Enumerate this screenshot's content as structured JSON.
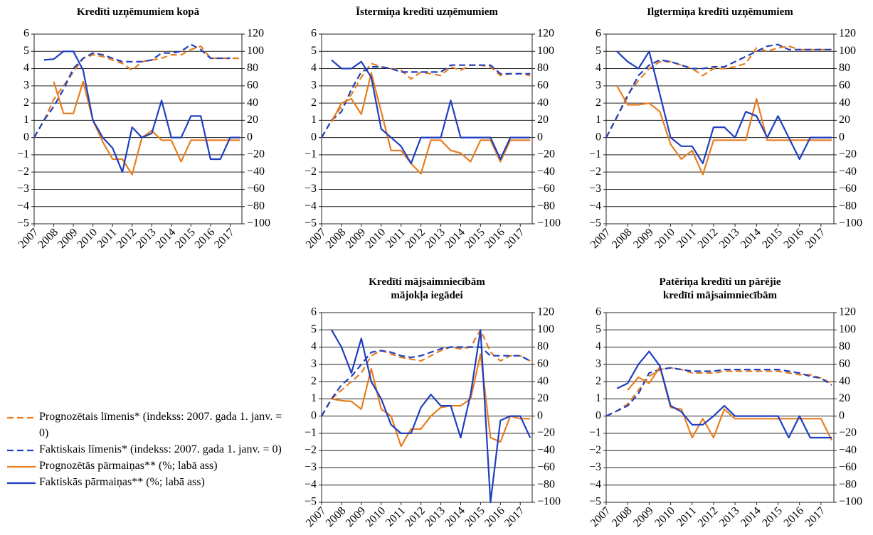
{
  "chart_data": [
    {
      "type": "line",
      "title": "Kredīti uzņēmumiem kopā",
      "x": [
        2007,
        2007.5,
        2008,
        2008.5,
        2009,
        2009.5,
        2010,
        2010.5,
        2011,
        2011.5,
        2012,
        2012.5,
        2013,
        2013.5,
        2014,
        2014.5,
        2015,
        2015.5,
        2016,
        2016.5,
        2017,
        2017.5
      ],
      "xlim": [
        2007,
        2017.6
      ],
      "xticks": [
        2007,
        2008,
        2009,
        2010,
        2011,
        2012,
        2013,
        2014,
        2015,
        2016,
        2017
      ],
      "ylim": [
        -5,
        6
      ],
      "yticks": [
        {
          "value": -5,
          "label": "−5"
        },
        {
          "value": -4,
          "label": "−4"
        },
        {
          "value": -3,
          "label": "−3"
        },
        {
          "value": -2,
          "label": "−2"
        },
        {
          "value": -1,
          "label": "−1"
        },
        0,
        1,
        2,
        3,
        4,
        5,
        6
      ],
      "y2lim": [
        -100,
        120
      ],
      "y2ticks": [
        {
          "value": -100,
          "label": "−100"
        },
        {
          "value": -80,
          "label": "−80"
        },
        {
          "value": -60,
          "label": "−60"
        },
        {
          "value": -40,
          "label": "−40"
        },
        {
          "value": -20,
          "label": "−20"
        },
        0,
        20,
        40,
        60,
        80,
        100,
        120
      ],
      "grid": true,
      "series": [
        {
          "name": "Prognozētais līmenis* (indekss: 2007. gada 1. janv. = 0)",
          "color": "#e87d1e",
          "linestyle": "dashed",
          "values": [
            0,
            1,
            2.2,
            3,
            3.8,
            4.6,
            4.8,
            4.7,
            4.5,
            4.3,
            3.9,
            4.4,
            4.5,
            4.6,
            4.8,
            4.8,
            5.1,
            5.3,
            4.6,
            4.6,
            4.6,
            4.6
          ]
        },
        {
          "name": "Faktiskais līmenis* (indekss: 2007. gada 1. janv. = 0)",
          "color": "#1f3fbf",
          "linestyle": "dashed",
          "values": [
            0,
            1,
            1.8,
            2.8,
            4,
            4.6,
            4.9,
            4.8,
            4.6,
            4.4,
            4.4,
            4.4,
            4.5,
            4.9,
            4.9,
            5,
            5.4,
            5.1,
            4.6,
            4.6,
            4.6,
            null
          ]
        },
        {
          "name": "Prognozētās pārmaiņas** (%; labā ass)",
          "color": "#e87d1e",
          "linestyle": "solid",
          "axis": "y2",
          "values": [
            null,
            null,
            65,
            28,
            28,
            65,
            20,
            -5,
            -25,
            -25,
            -43,
            0,
            8,
            -3,
            -3,
            -28,
            -3,
            -3,
            -3,
            -3,
            -3,
            -3
          ]
        },
        {
          "name": "Faktiskās pārmaiņas** (%; labā ass)",
          "color": "#1f3fbf",
          "linestyle": "solid",
          "axis": "y2",
          "values": [
            null,
            90,
            91,
            100,
            100,
            78,
            20,
            0,
            -12,
            -40,
            12,
            0,
            5,
            43,
            0,
            0,
            25,
            25,
            -25,
            -25,
            0,
            0
          ]
        }
      ]
    },
    {
      "type": "line",
      "title": "Īstermiņa kredīti uzņēmumiem",
      "x": [
        2007,
        2007.5,
        2008,
        2008.5,
        2009,
        2009.5,
        2010,
        2010.5,
        2011,
        2011.5,
        2012,
        2012.5,
        2013,
        2013.5,
        2014,
        2014.5,
        2015,
        2015.5,
        2016,
        2016.5,
        2017,
        2017.5
      ],
      "xlim": [
        2007,
        2017.6
      ],
      "xticks": [
        2007,
        2008,
        2009,
        2010,
        2011,
        2012,
        2013,
        2014,
        2015,
        2016,
        2017
      ],
      "ylim": [
        -5,
        6
      ],
      "yticks": [
        {
          "value": -5,
          "label": "−5"
        },
        {
          "value": -4,
          "label": "−4"
        },
        {
          "value": -3,
          "label": "−3"
        },
        {
          "value": -2,
          "label": "−2"
        },
        {
          "value": -1,
          "label": "−1"
        },
        0,
        1,
        2,
        3,
        4,
        5,
        6
      ],
      "y2lim": [
        -100,
        120
      ],
      "y2ticks": [
        {
          "value": -100,
          "label": "−100"
        },
        {
          "value": -80,
          "label": "−80"
        },
        {
          "value": -60,
          "label": "−60"
        },
        {
          "value": -40,
          "label": "−40"
        },
        {
          "value": -20,
          "label": "−20"
        },
        0,
        20,
        40,
        60,
        80,
        100,
        120
      ],
      "grid": true,
      "series": [
        {
          "color": "#e87d1e",
          "linestyle": "dashed",
          "values": [
            0,
            1,
            1.8,
            2.5,
            3.5,
            4.3,
            4.1,
            4.0,
            3.9,
            3.4,
            3.8,
            3.7,
            3.6,
            4.1,
            3.9,
            4.2,
            4.2,
            4.1,
            3.6,
            3.7,
            3.7,
            3.6
          ]
        },
        {
          "color": "#1f3fbf",
          "linestyle": "dashed",
          "values": [
            0,
            1,
            1.5,
            2.8,
            3.8,
            4.1,
            4.1,
            4.0,
            3.8,
            3.8,
            3.8,
            3.8,
            3.8,
            4.2,
            4.2,
            4.2,
            4.2,
            4.2,
            3.7,
            3.7,
            3.7,
            3.7
          ]
        },
        {
          "color": "#e87d1e",
          "linestyle": "solid",
          "axis": "y2",
          "values": [
            null,
            18,
            40,
            45,
            27,
            75,
            30,
            -15,
            -15,
            -30,
            -42,
            -3,
            -3,
            -15,
            -18,
            -28,
            -3,
            -3,
            -28,
            -3,
            -3,
            -3
          ]
        },
        {
          "color": "#1f3fbf",
          "linestyle": "solid",
          "axis": "y2",
          "values": [
            null,
            90,
            80,
            80,
            88,
            70,
            10,
            0,
            -10,
            -30,
            0,
            0,
            0,
            43,
            0,
            0,
            0,
            0,
            -25,
            0,
            0,
            0
          ]
        }
      ]
    },
    {
      "type": "line",
      "title": "Ilgtermiņa kredīti uzņēmumiem",
      "x": [
        2007,
        2007.5,
        2008,
        2008.5,
        2009,
        2009.5,
        2010,
        2010.5,
        2011,
        2011.5,
        2012,
        2012.5,
        2013,
        2013.5,
        2014,
        2014.5,
        2015,
        2015.5,
        2016,
        2016.5,
        2017,
        2017.5
      ],
      "xlim": [
        2007,
        2017.6
      ],
      "xticks": [
        2007,
        2008,
        2009,
        2010,
        2011,
        2012,
        2013,
        2014,
        2015,
        2016,
        2017
      ],
      "ylim": [
        -5,
        6
      ],
      "yticks": [
        {
          "value": -5,
          "label": "−5"
        },
        {
          "value": -4,
          "label": "−4"
        },
        {
          "value": -3,
          "label": "−3"
        },
        {
          "value": -2,
          "label": "−2"
        },
        {
          "value": -1,
          "label": "−1"
        },
        0,
        1,
        2,
        3,
        4,
        5,
        6
      ],
      "y2lim": [
        -100,
        120
      ],
      "y2ticks": [
        {
          "value": -100,
          "label": "−100"
        },
        {
          "value": -80,
          "label": "−80"
        },
        {
          "value": -60,
          "label": "−60"
        },
        {
          "value": -40,
          "label": "−40"
        },
        {
          "value": -20,
          "label": "−20"
        },
        0,
        20,
        40,
        60,
        80,
        100,
        120
      ],
      "grid": true,
      "series": [
        {
          "color": "#e87d1e",
          "linestyle": "dashed",
          "values": [
            0,
            1.2,
            2.5,
            3.3,
            4.0,
            4.4,
            4.4,
            4.2,
            4.0,
            3.6,
            4.0,
            4.0,
            4.1,
            4.3,
            5.2,
            5.0,
            5.2,
            5.3,
            5.1,
            5.1,
            5.1,
            5.1
          ]
        },
        {
          "color": "#1f3fbf",
          "linestyle": "dashed",
          "values": [
            0,
            1.2,
            2.4,
            3.6,
            4.2,
            4.5,
            4.4,
            4.2,
            4.0,
            4.0,
            4.1,
            4.1,
            4.4,
            4.7,
            5.0,
            5.3,
            5.4,
            5.1,
            5.1,
            5.1,
            5.1,
            5.1
          ]
        },
        {
          "color": "#e87d1e",
          "linestyle": "solid",
          "axis": "y2",
          "values": [
            null,
            60,
            38,
            38,
            40,
            30,
            -8,
            -25,
            -15,
            -43,
            -3,
            -3,
            -3,
            -3,
            45,
            -3,
            -3,
            -3,
            -3,
            -3,
            -3,
            -3
          ]
        },
        {
          "color": "#1f3fbf",
          "linestyle": "solid",
          "axis": "y2",
          "values": [
            null,
            100,
            88,
            80,
            100,
            50,
            0,
            -10,
            -10,
            -30,
            12,
            12,
            0,
            30,
            25,
            0,
            25,
            0,
            -25,
            0,
            0,
            0
          ]
        }
      ]
    },
    {
      "type": "line",
      "title": "Kredīti mājsaimniecībām\nmājokļa iegādei",
      "x": [
        2007,
        2007.5,
        2008,
        2008.5,
        2009,
        2009.5,
        2010,
        2010.5,
        2011,
        2011.5,
        2012,
        2012.5,
        2013,
        2013.5,
        2014,
        2014.5,
        2015,
        2015.5,
        2016,
        2016.5,
        2017,
        2017.5
      ],
      "xlim": [
        2007,
        2017.6
      ],
      "xticks": [
        2007,
        2008,
        2009,
        2010,
        2011,
        2012,
        2013,
        2014,
        2015,
        2016,
        2017
      ],
      "ylim": [
        -5,
        6
      ],
      "yticks": [
        {
          "value": -5,
          "label": "−5"
        },
        {
          "value": -4,
          "label": "−4"
        },
        {
          "value": -3,
          "label": "−3"
        },
        {
          "value": -2,
          "label": "−2"
        },
        {
          "value": -1,
          "label": "−1"
        },
        0,
        1,
        2,
        3,
        4,
        5,
        6
      ],
      "y2lim": [
        -100,
        120
      ],
      "y2ticks": [
        {
          "value": -100,
          "label": "−100"
        },
        {
          "value": -80,
          "label": "−80"
        },
        {
          "value": -60,
          "label": "−60"
        },
        {
          "value": -40,
          "label": "−40"
        },
        {
          "value": -20,
          "label": "−20"
        },
        0,
        20,
        40,
        60,
        80,
        100,
        120
      ],
      "grid": true,
      "series": [
        {
          "color": "#e87d1e",
          "linestyle": "dashed",
          "values": [
            0,
            1,
            1.5,
            2,
            2.5,
            3.5,
            3.8,
            3.6,
            3.4,
            3.3,
            3.2,
            3.5,
            3.8,
            4.0,
            3.9,
            4.0,
            5.0,
            3.7,
            3.2,
            3.5,
            3.5,
            3.2
          ]
        },
        {
          "color": "#1f3fbf",
          "linestyle": "dashed",
          "values": [
            0,
            1,
            1.8,
            2.3,
            3.0,
            3.7,
            3.8,
            3.7,
            3.5,
            3.4,
            3.5,
            3.7,
            3.9,
            4.0,
            4.0,
            4.0,
            4.0,
            3.5,
            3.5,
            3.5,
            3.5,
            3.2
          ]
        },
        {
          "color": "#e87d1e",
          "linestyle": "solid",
          "axis": "y2",
          "values": [
            null,
            20,
            18,
            17,
            8,
            55,
            8,
            0,
            -35,
            -15,
            -15,
            0,
            10,
            12,
            12,
            20,
            72,
            -25,
            -30,
            0,
            -3,
            -3
          ]
        },
        {
          "color": "#1f3fbf",
          "linestyle": "solid",
          "axis": "y2",
          "values": [
            null,
            100,
            80,
            50,
            90,
            40,
            20,
            -10,
            -20,
            -20,
            10,
            25,
            12,
            12,
            -25,
            25,
            100,
            -100,
            -5,
            0,
            0,
            -25
          ]
        }
      ]
    },
    {
      "type": "line",
      "title": "Patēriņa kredīti un  pārējie\nkredīti mājsaimniecībām",
      "x": [
        2007,
        2007.5,
        2008,
        2008.5,
        2009,
        2009.5,
        2010,
        2010.5,
        2011,
        2011.5,
        2012,
        2012.5,
        2013,
        2013.5,
        2014,
        2014.5,
        2015,
        2015.5,
        2016,
        2016.5,
        2017,
        2017.5
      ],
      "xlim": [
        2007,
        2017.6
      ],
      "xticks": [
        2007,
        2008,
        2009,
        2010,
        2011,
        2012,
        2013,
        2014,
        2015,
        2016,
        2017
      ],
      "ylim": [
        -5,
        6
      ],
      "yticks": [
        {
          "value": -5,
          "label": "−5"
        },
        {
          "value": -4,
          "label": "−4"
        },
        {
          "value": -3,
          "label": "−3"
        },
        {
          "value": -2,
          "label": "−2"
        },
        {
          "value": -1,
          "label": "−1"
        },
        0,
        1,
        2,
        3,
        4,
        5,
        6
      ],
      "y2lim": [
        -100,
        120
      ],
      "y2ticks": [
        {
          "value": -100,
          "label": "−100"
        },
        {
          "value": -80,
          "label": "−80"
        },
        {
          "value": -60,
          "label": "−60"
        },
        {
          "value": -40,
          "label": "−40"
        },
        {
          "value": -20,
          "label": "−20"
        },
        0,
        20,
        40,
        60,
        80,
        100,
        120
      ],
      "grid": true,
      "series": [
        {
          "color": "#e87d1e",
          "linestyle": "dashed",
          "values": [
            0,
            0.3,
            0.7,
            1.5,
            2.3,
            2.7,
            2.8,
            2.7,
            2.5,
            2.5,
            2.5,
            2.6,
            2.6,
            2.6,
            2.6,
            2.6,
            2.6,
            2.5,
            2.4,
            2.4,
            2.2,
            1.9
          ]
        },
        {
          "color": "#1f3fbf",
          "linestyle": "dashed",
          "values": [
            0,
            0.3,
            0.6,
            1.3,
            2.5,
            2.7,
            2.8,
            2.7,
            2.6,
            2.6,
            2.6,
            2.7,
            2.7,
            2.7,
            2.7,
            2.7,
            2.7,
            2.6,
            2.5,
            2.3,
            2.2,
            1.8
          ]
        },
        {
          "color": "#e87d1e",
          "linestyle": "solid",
          "axis": "y2",
          "values": [
            null,
            null,
            30,
            45,
            38,
            57,
            10,
            8,
            -25,
            -3,
            -25,
            8,
            -3,
            -3,
            -3,
            -3,
            -3,
            -3,
            -3,
            -3,
            -3,
            -28
          ]
        },
        {
          "color": "#1f3fbf",
          "linestyle": "solid",
          "axis": "y2",
          "values": [
            null,
            32,
            38,
            60,
            75,
            58,
            12,
            5,
            -10,
            -10,
            0,
            12,
            0,
            0,
            0,
            0,
            0,
            -25,
            0,
            -25,
            -25,
            -25
          ]
        }
      ]
    }
  ]
}
